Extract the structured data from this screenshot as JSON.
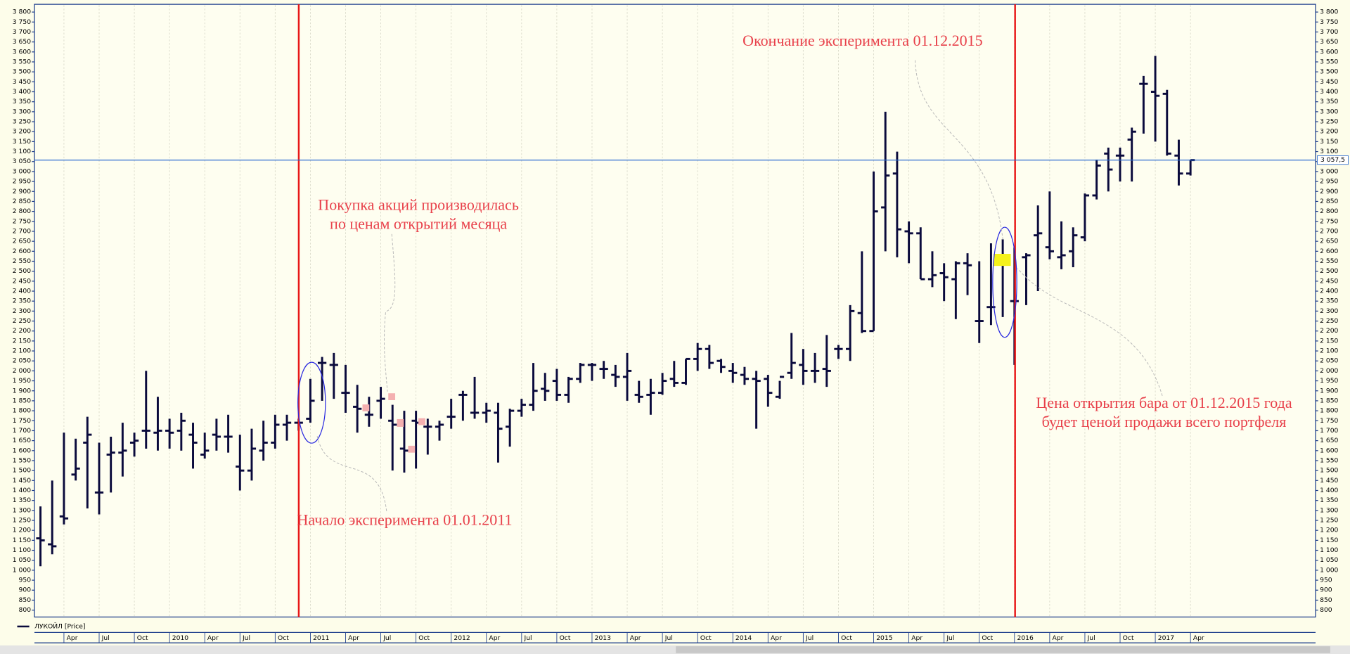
{
  "chart_data": {
    "type": "ohlc",
    "grid": true,
    "series": [
      {
        "name": "ЛУКОЙЛ [Price]",
        "color": "#0a0a3c",
        "open": [
          1160,
          1130,
          1270,
          1480,
          1640,
          1390,
          1580,
          1590,
          1640,
          1700,
          1690,
          1700,
          1700,
          1680,
          1580,
          1680,
          1670,
          1520,
          1500,
          1600,
          1640,
          1730,
          1740,
          1760,
          2040,
          2030,
          1890,
          1820,
          1780,
          1850,
          1750,
          1610,
          1750,
          1720,
          1720,
          1770,
          1880,
          1790,
          1790,
          1790,
          1720,
          1800,
          1830,
          1910,
          1950,
          1880,
          1960,
          2030,
          2010,
          1980,
          1970,
          1880,
          1880,
          1890,
          1960,
          1940,
          2060,
          2110,
          2050,
          2000,
          1980,
          1960,
          1960,
          1870,
          1990,
          2030,
          2000,
          2010,
          2110,
          2110,
          2290,
          2200,
          2820,
          2990,
          2700,
          2690,
          2460,
          2490,
          2460,
          2540,
          2250,
          2320,
          2550,
          2350,
          2570,
          2680,
          2620,
          2570,
          2600,
          2670,
          2880,
          3090,
          3080,
          3160,
          3440,
          3400,
          3390,
          3080,
          2990
        ],
        "high": [
          1320,
          1450,
          1690,
          1660,
          1770,
          1640,
          1670,
          1740,
          1690,
          2000,
          1870,
          1760,
          1790,
          1740,
          1690,
          1760,
          1780,
          1680,
          1710,
          1750,
          1780,
          1780,
          1760,
          1960,
          2070,
          2090,
          2030,
          1930,
          1870,
          1920,
          1830,
          1800,
          1800,
          1760,
          1750,
          1860,
          1900,
          1970,
          1840,
          1840,
          1810,
          1860,
          2040,
          1990,
          2010,
          1970,
          2040,
          2040,
          2050,
          2030,
          2090,
          1950,
          1960,
          1990,
          2050,
          2060,
          2140,
          2130,
          2060,
          2040,
          2020,
          2000,
          1980,
          1950,
          2190,
          2110,
          2090,
          2180,
          2130,
          2330,
          2600,
          3000,
          3300,
          3100,
          2750,
          2720,
          2600,
          2540,
          2550,
          2590,
          2550,
          2640,
          2660,
          2620,
          2590,
          2830,
          2900,
          2750,
          2720,
          2890,
          3060,
          3120,
          3120,
          3220,
          3480,
          3580,
          3410,
          3160,
          3060
        ],
        "low": [
          1020,
          1080,
          1230,
          1450,
          1310,
          1280,
          1390,
          1470,
          1570,
          1610,
          1600,
          1610,
          1600,
          1510,
          1560,
          1600,
          1590,
          1400,
          1450,
          1550,
          1610,
          1650,
          1700,
          1740,
          1850,
          1860,
          1790,
          1690,
          1720,
          1760,
          1500,
          1490,
          1510,
          1580,
          1650,
          1710,
          1750,
          1760,
          1740,
          1540,
          1620,
          1770,
          1800,
          1850,
          1850,
          1840,
          1940,
          1950,
          1960,
          1920,
          1850,
          1840,
          1780,
          1880,
          1920,
          1930,
          2000,
          2010,
          1990,
          1940,
          1930,
          1710,
          1820,
          1860,
          1960,
          1930,
          1940,
          1920,
          2060,
          2050,
          2190,
          2200,
          2600,
          2570,
          2540,
          2460,
          2420,
          2350,
          2260,
          2380,
          2140,
          2230,
          2270,
          2030,
          2330,
          2400,
          2560,
          2510,
          2520,
          2650,
          2860,
          2900,
          2950,
          2950,
          3190,
          3150,
          3080,
          2930,
          2980
        ],
        "close": [
          1150,
          1120,
          1260,
          1510,
          1680,
          1390,
          1590,
          1600,
          1650,
          1700,
          1700,
          1690,
          1750,
          1640,
          1600,
          1670,
          1670,
          1500,
          1610,
          1640,
          1730,
          1740,
          1740,
          1850,
          2040,
          2030,
          1890,
          1810,
          1780,
          1860,
          1730,
          1600,
          1740,
          1720,
          1730,
          1770,
          1880,
          1790,
          1800,
          1710,
          1800,
          1830,
          1900,
          1900,
          1880,
          1960,
          2030,
          2030,
          2010,
          1970,
          2000,
          1870,
          1890,
          1950,
          1940,
          2060,
          2110,
          2040,
          2020,
          1990,
          1960,
          1950,
          1890,
          1970,
          2040,
          2000,
          2000,
          2000,
          2110,
          2300,
          2200,
          2800,
          2980,
          2710,
          2690,
          2460,
          2480,
          2470,
          2540,
          2530,
          2250,
          2320,
          2560,
          2350,
          2580,
          2690,
          2600,
          2580,
          2680,
          2880,
          3030,
          3010,
          3080,
          3200,
          3440,
          3380,
          3090,
          2990,
          3057.5
        ]
      }
    ],
    "x": [
      "2009-02",
      "2009-03",
      "2009-04",
      "2009-05",
      "2009-06",
      "2009-07",
      "2009-08",
      "2009-09",
      "2009-10",
      "2009-11",
      "2009-12",
      "2010-01",
      "2010-02",
      "2010-03",
      "2010-04",
      "2010-05",
      "2010-06",
      "2010-07",
      "2010-08",
      "2010-09",
      "2010-10",
      "2010-11",
      "2010-12",
      "2011-01",
      "2011-02",
      "2011-03",
      "2011-04",
      "2011-05",
      "2011-06",
      "2011-07",
      "2011-08",
      "2011-09",
      "2011-10",
      "2011-11",
      "2011-12",
      "2012-01",
      "2012-02",
      "2012-03",
      "2012-04",
      "2012-05",
      "2012-06",
      "2012-07",
      "2012-08",
      "2012-09",
      "2012-10",
      "2012-11",
      "2012-12",
      "2013-01",
      "2013-02",
      "2013-03",
      "2013-04",
      "2013-05",
      "2013-06",
      "2013-07",
      "2013-08",
      "2013-09",
      "2013-10",
      "2013-11",
      "2013-12",
      "2014-01",
      "2014-02",
      "2014-03",
      "2014-04",
      "2014-05",
      "2014-06",
      "2014-07",
      "2014-08",
      "2014-09",
      "2014-10",
      "2014-11",
      "2014-12",
      "2015-01",
      "2015-02",
      "2015-03",
      "2015-04",
      "2015-05",
      "2015-06",
      "2015-07",
      "2015-08",
      "2015-09",
      "2015-10",
      "2015-11",
      "2015-12",
      "2016-01",
      "2016-02",
      "2016-03",
      "2016-04",
      "2016-05",
      "2016-06",
      "2016-07",
      "2016-08",
      "2016-09",
      "2016-10",
      "2016-11",
      "2016-12",
      "2017-01",
      "2017-02",
      "2017-03",
      "2017-04"
    ],
    "xticks": [
      {
        "value": "2009-04",
        "label": "Apr"
      },
      {
        "value": "2009-07",
        "label": "Jul"
      },
      {
        "value": "2009-10",
        "label": "Oct"
      },
      {
        "value": "2010-01",
        "label": "2010"
      },
      {
        "value": "2010-04",
        "label": "Apr"
      },
      {
        "value": "2010-07",
        "label": "Jul"
      },
      {
        "value": "2010-10",
        "label": "Oct"
      },
      {
        "value": "2011-01",
        "label": "2011"
      },
      {
        "value": "2011-04",
        "label": "Apr"
      },
      {
        "value": "2011-07",
        "label": "Jul"
      },
      {
        "value": "2011-10",
        "label": "Oct"
      },
      {
        "value": "2012-01",
        "label": "2012"
      },
      {
        "value": "2012-04",
        "label": "Apr"
      },
      {
        "value": "2012-07",
        "label": "Jul"
      },
      {
        "value": "2012-10",
        "label": "Oct"
      },
      {
        "value": "2013-01",
        "label": "2013"
      },
      {
        "value": "2013-04",
        "label": "Apr"
      },
      {
        "value": "2013-07",
        "label": "Jul"
      },
      {
        "value": "2013-10",
        "label": "Oct"
      },
      {
        "value": "2014-01",
        "label": "2014"
      },
      {
        "value": "2014-04",
        "label": "Apr"
      },
      {
        "value": "2014-07",
        "label": "Jul"
      },
      {
        "value": "2014-10",
        "label": "Oct"
      },
      {
        "value": "2015-01",
        "label": "2015"
      },
      {
        "value": "2015-04",
        "label": "Apr"
      },
      {
        "value": "2015-07",
        "label": "Jul"
      },
      {
        "value": "2015-10",
        "label": "Oct"
      },
      {
        "value": "2016-01",
        "label": "2016"
      },
      {
        "value": "2016-04",
        "label": "Apr"
      },
      {
        "value": "2016-07",
        "label": "Jul"
      },
      {
        "value": "2016-10",
        "label": "Oct"
      },
      {
        "value": "2017-01",
        "label": "2017"
      },
      {
        "value": "2017-04",
        "label": "Apr"
      }
    ],
    "ylim": [
      800,
      3800
    ],
    "yticks": [
      800,
      850,
      900,
      950,
      {
        "value": 1000,
        "label": "1 000"
      },
      {
        "value": 1050,
        "label": "1 050"
      },
      {
        "value": 1100,
        "label": "1 100"
      },
      {
        "value": 1150,
        "label": "1 150"
      },
      {
        "value": 1200,
        "label": "1 200"
      },
      {
        "value": 1250,
        "label": "1 250"
      },
      {
        "value": 1300,
        "label": "1 300"
      },
      {
        "value": 1350,
        "label": "1 350"
      },
      {
        "value": 1400,
        "label": "1 400"
      },
      {
        "value": 1450,
        "label": "1 450"
      },
      {
        "value": 1500,
        "label": "1 500"
      },
      {
        "value": 1550,
        "label": "1 550"
      },
      {
        "value": 1600,
        "label": "1 600"
      },
      {
        "value": 1650,
        "label": "1 650"
      },
      {
        "value": 1700,
        "label": "1 700"
      },
      {
        "value": 1750,
        "label": "1 750"
      },
      {
        "value": 1800,
        "label": "1 800"
      },
      {
        "value": 1850,
        "label": "1 850"
      },
      {
        "value": 1900,
        "label": "1 900"
      },
      {
        "value": 1950,
        "label": "1 950"
      },
      {
        "value": 2000,
        "label": "2 000"
      },
      {
        "value": 2050,
        "label": "2 050"
      },
      {
        "value": 2100,
        "label": "2 100"
      },
      {
        "value": 2150,
        "label": "2 150"
      },
      {
        "value": 2200,
        "label": "2 200"
      },
      {
        "value": 2250,
        "label": "2 250"
      },
      {
        "value": 2300,
        "label": "2 300"
      },
      {
        "value": 2350,
        "label": "2 350"
      },
      {
        "value": 2400,
        "label": "2 400"
      },
      {
        "value": 2450,
        "label": "2 450"
      },
      {
        "value": 2500,
        "label": "2 500"
      },
      {
        "value": 2550,
        "label": "2 550"
      },
      {
        "value": 2600,
        "label": "2 600"
      },
      {
        "value": 2650,
        "label": "2 650"
      },
      {
        "value": 2700,
        "label": "2 700"
      },
      {
        "value": 2750,
        "label": "2 750"
      },
      {
        "value": 2800,
        "label": "2 800"
      },
      {
        "value": 2850,
        "label": "2 850"
      },
      {
        "value": 2900,
        "label": "2 900"
      },
      {
        "value": 2950,
        "label": "2 950"
      },
      {
        "value": 3000,
        "label": "3 000"
      },
      {
        "value": 3050,
        "label": "3 050"
      },
      {
        "value": 3100,
        "label": "3 100"
      },
      {
        "value": 3150,
        "label": "3 150"
      },
      {
        "value": 3200,
        "label": "3 200"
      },
      {
        "value": 3250,
        "label": "3 250"
      },
      {
        "value": 3300,
        "label": "3 300"
      },
      {
        "value": 3350,
        "label": "3 350"
      },
      {
        "value": 3400,
        "label": "3 400"
      },
      {
        "value": 3450,
        "label": "3 450"
      },
      {
        "value": 3500,
        "label": "3 500"
      },
      {
        "value": 3550,
        "label": "3 550"
      },
      {
        "value": 3600,
        "label": "3 600"
      },
      {
        "value": 3650,
        "label": "3 650"
      },
      {
        "value": 3700,
        "label": "3 700"
      },
      {
        "value": 3750,
        "label": "3 750"
      },
      {
        "value": 3800,
        "label": "3 800"
      }
    ],
    "last_price": {
      "value": 3057.5,
      "label": "3 057,5"
    },
    "annotations": [
      {
        "lines": [
          "Окончание эксперимента 01.12.2015"
        ]
      },
      {
        "lines": [
          "Покупка акций производилась",
          "по ценам открытий месяца"
        ]
      },
      {
        "lines": [
          "Начало эксперимента 01.01.2011"
        ]
      },
      {
        "lines": [
          "Цена открытия бара от 01.12.2015 года",
          "будет ценой продажи всего портфеля"
        ]
      }
    ]
  }
}
